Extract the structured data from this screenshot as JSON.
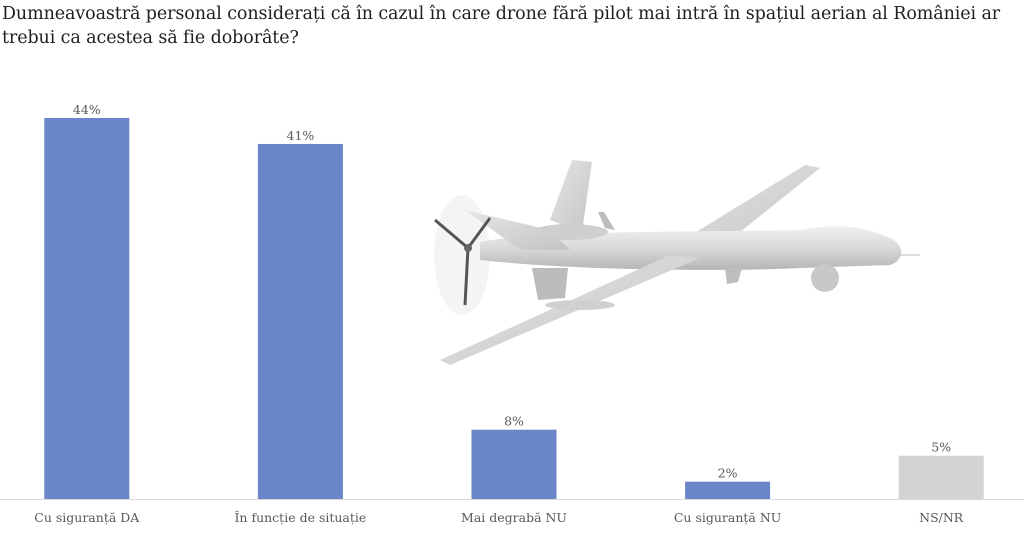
{
  "chart_data": {
    "type": "bar",
    "title": "Dumneavoastră personal considerați că în cazul în care drone fără pilot mai intră în spațiul aerian al României ar trebui ca acestea să fie doborâte?",
    "categories": [
      "Cu siguranță DA",
      "În funcție de situație",
      "Mai degrabă NU",
      "Cu siguranță NU",
      "NS/NR"
    ],
    "values": [
      44,
      41,
      8,
      2,
      5
    ],
    "value_labels": [
      "44%",
      "41%",
      "8%",
      "2%",
      "5%"
    ],
    "unit": "%",
    "bar_colors": [
      "#6a86c8",
      "#6a86c8",
      "#6a86c8",
      "#6a86c8",
      "#d3d3d3"
    ],
    "xlabel": "",
    "ylabel": "",
    "ylim": [
      0,
      44
    ],
    "grid": false,
    "legend": "none",
    "decoration": "drone-illustration"
  }
}
